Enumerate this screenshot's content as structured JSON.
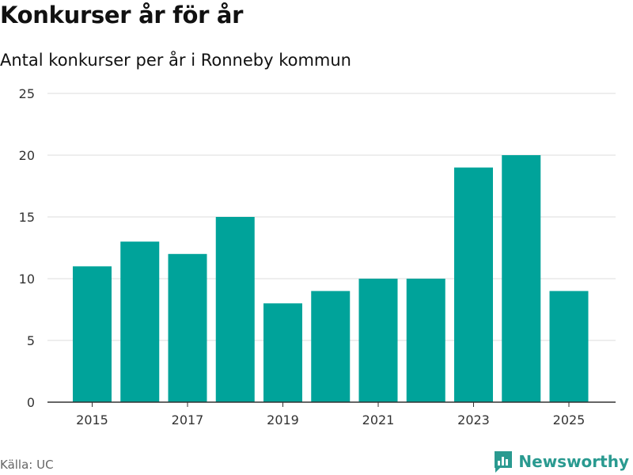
{
  "header": {
    "title": "Konkurser år för år",
    "subtitle": "Antal konkurser per år i Ronneby kommun"
  },
  "chart_data": {
    "type": "bar",
    "title": "Konkurser år för år",
    "subtitle": "Antal konkurser per år i Ronneby kommun",
    "xlabel": "",
    "ylabel": "",
    "categories": [
      "2015",
      "2016",
      "2017",
      "2018",
      "2019",
      "2020",
      "2021",
      "2022",
      "2023",
      "2024",
      "2025"
    ],
    "values": [
      11,
      13,
      12,
      15,
      8,
      9,
      10,
      10,
      19,
      20,
      9
    ],
    "x_tick_labels": [
      "2015",
      "2017",
      "2019",
      "2021",
      "2023",
      "2025"
    ],
    "y_ticks": [
      0,
      5,
      10,
      15,
      20,
      25
    ],
    "ylim": [
      0,
      25
    ],
    "grid": true,
    "bar_color": "#00a39a"
  },
  "footer": {
    "source": "Källa: UC",
    "brand_name": "Newsworthy",
    "brand_icon": "newsworthy-logo-icon"
  },
  "colors": {
    "bar": "#00a39a",
    "brand": "#2a9a90",
    "grid": "#dddddd",
    "axis": "#333333"
  }
}
